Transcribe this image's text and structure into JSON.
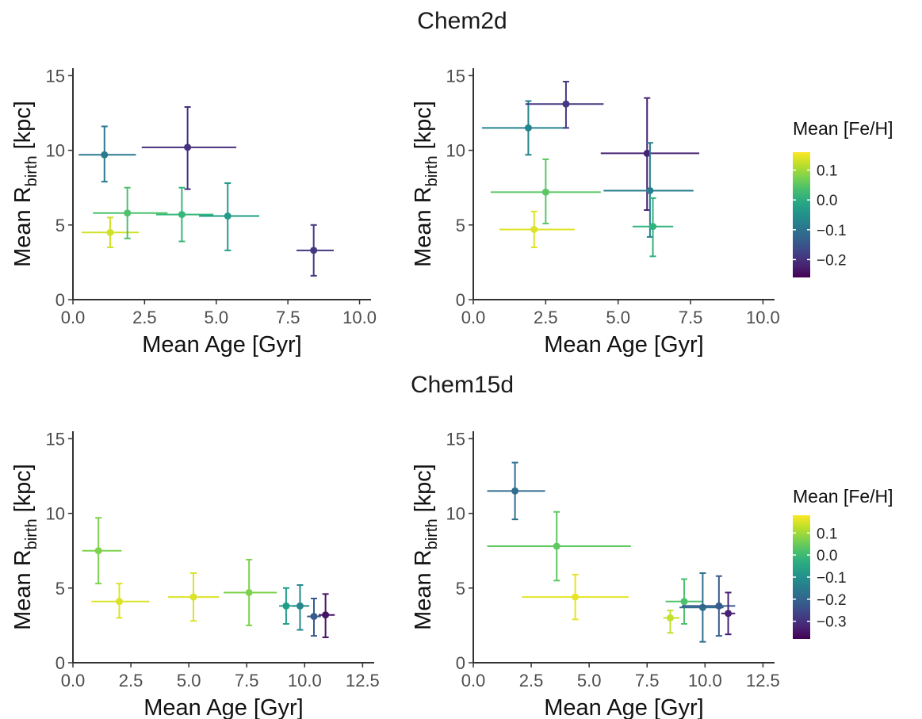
{
  "sections": [
    {
      "title": "Chem2d"
    },
    {
      "title": "Chem15d"
    }
  ],
  "chart_data": [
    {
      "type": "scatter",
      "section": "Chem2d",
      "xlabel": "Mean Age [Gyr]",
      "ylabel_main": "Mean R",
      "ylabel_sub": "birth",
      "ylabel_unit": " [kpc]",
      "xlim": [
        0,
        10.4
      ],
      "ylim": [
        0,
        15.5
      ],
      "xticks": [
        0,
        2.5,
        5,
        7.5,
        10
      ],
      "xtick_labels": [
        "0.0",
        "2.5",
        "5.0",
        "7.5",
        "10.0"
      ],
      "yticks": [
        0,
        5,
        10,
        15
      ],
      "ytick_labels": [
        "0",
        "5",
        "10",
        "15"
      ],
      "points": [
        {
          "x": 1.3,
          "y": 4.5,
          "xerr": [
            0.3,
            2.3
          ],
          "yerr": [
            3.5,
            5.5
          ],
          "feh": 0.13
        },
        {
          "x": 1.1,
          "y": 9.7,
          "xerr": [
            0.2,
            2.2
          ],
          "yerr": [
            7.9,
            11.6
          ],
          "feh": -0.09
        },
        {
          "x": 1.9,
          "y": 5.8,
          "xerr": [
            0.7,
            3.3
          ],
          "yerr": [
            4.1,
            7.5
          ],
          "feh": 0.04
        },
        {
          "x": 3.8,
          "y": 5.7,
          "xerr": [
            2.9,
            4.9
          ],
          "yerr": [
            3.9,
            7.5
          ],
          "feh": 0.02
        },
        {
          "x": 5.4,
          "y": 5.6,
          "xerr": [
            4.4,
            6.5
          ],
          "yerr": [
            3.3,
            7.8
          ],
          "feh": -0.03
        },
        {
          "x": 4.0,
          "y": 10.2,
          "xerr": [
            2.4,
            5.7
          ],
          "yerr": [
            7.4,
            12.9
          ],
          "feh": -0.2
        },
        {
          "x": 8.4,
          "y": 3.3,
          "xerr": [
            7.8,
            9.1
          ],
          "yerr": [
            1.6,
            5.0
          ],
          "feh": -0.19
        }
      ]
    },
    {
      "type": "scatter",
      "section": "Chem2d",
      "xlabel": "Mean Age [Gyr]",
      "ylabel_main": "Mean R",
      "ylabel_sub": "birth",
      "ylabel_unit": " [kpc]",
      "xlim": [
        0,
        10.4
      ],
      "ylim": [
        0,
        15.5
      ],
      "xticks": [
        0,
        2.5,
        5,
        7.5,
        10
      ],
      "xtick_labels": [
        "0.0",
        "2.5",
        "5.0",
        "7.5",
        "10.0"
      ],
      "yticks": [
        0,
        5,
        10,
        15
      ],
      "ytick_labels": [
        "0",
        "5",
        "10",
        "15"
      ],
      "points": [
        {
          "x": 2.1,
          "y": 4.7,
          "xerr": [
            0.9,
            3.5
          ],
          "yerr": [
            3.5,
            5.9
          ],
          "feh": 0.14
        },
        {
          "x": 1.9,
          "y": 11.5,
          "xerr": [
            0.3,
            3.2
          ],
          "yerr": [
            9.7,
            13.3
          ],
          "feh": -0.07
        },
        {
          "x": 3.2,
          "y": 13.1,
          "xerr": [
            1.8,
            4.5
          ],
          "yerr": [
            11.5,
            14.6
          ],
          "feh": -0.19
        },
        {
          "x": 2.5,
          "y": 7.2,
          "xerr": [
            0.6,
            4.4
          ],
          "yerr": [
            5.1,
            9.4
          ],
          "feh": 0.05
        },
        {
          "x": 6.0,
          "y": 9.8,
          "xerr": [
            4.4,
            7.8
          ],
          "yerr": [
            6.0,
            13.5
          ],
          "feh": -0.22
        },
        {
          "x": 6.1,
          "y": 7.3,
          "xerr": [
            4.5,
            7.6
          ],
          "yerr": [
            4.2,
            10.5
          ],
          "feh": -0.08
        },
        {
          "x": 6.2,
          "y": 4.9,
          "xerr": [
            5.5,
            6.9
          ],
          "yerr": [
            2.9,
            6.8
          ],
          "feh": 0.01
        }
      ]
    },
    {
      "type": "scatter",
      "section": "Chem15d",
      "xlabel": "Mean Age [Gyr]",
      "ylabel_main": "Mean R",
      "ylabel_sub": "birth",
      "ylabel_unit": " [kpc]",
      "xlim": [
        0,
        13
      ],
      "ylim": [
        0,
        15.5
      ],
      "xticks": [
        0,
        2.5,
        5,
        7.5,
        10,
        12.5
      ],
      "xtick_labels": [
        "0.0",
        "2.5",
        "5.0",
        "7.5",
        "10.0",
        "12.5"
      ],
      "yticks": [
        0,
        5,
        10,
        15
      ],
      "ytick_labels": [
        "0",
        "5",
        "10",
        "15"
      ],
      "points": [
        {
          "x": 1.1,
          "y": 7.5,
          "xerr": [
            0.4,
            2.1
          ],
          "yerr": [
            5.3,
            9.7
          ],
          "feh": 0.07
        },
        {
          "x": 2.0,
          "y": 4.1,
          "xerr": [
            0.8,
            3.3
          ],
          "yerr": [
            3.0,
            5.3
          ],
          "feh": 0.15
        },
        {
          "x": 5.2,
          "y": 4.4,
          "xerr": [
            4.1,
            6.3
          ],
          "yerr": [
            2.8,
            6.0
          ],
          "feh": 0.15
        },
        {
          "x": 7.6,
          "y": 4.7,
          "xerr": [
            6.5,
            8.8
          ],
          "yerr": [
            2.5,
            6.9
          ],
          "feh": 0.07
        },
        {
          "x": 9.2,
          "y": 3.8,
          "xerr": [
            8.9,
            9.6
          ],
          "yerr": [
            2.6,
            5.0
          ],
          "feh": -0.07
        },
        {
          "x": 9.8,
          "y": 3.8,
          "xerr": [
            9.5,
            10.2
          ],
          "yerr": [
            2.2,
            5.2
          ],
          "feh": -0.12
        },
        {
          "x": 10.4,
          "y": 3.1,
          "xerr": [
            10.1,
            10.7
          ],
          "yerr": [
            1.8,
            4.3
          ],
          "feh": -0.22
        },
        {
          "x": 10.9,
          "y": 3.2,
          "xerr": [
            10.6,
            11.3
          ],
          "yerr": [
            1.7,
            4.6
          ],
          "feh": -0.35
        }
      ]
    },
    {
      "type": "scatter",
      "section": "Chem15d",
      "xlabel": "Mean Age [Gyr]",
      "ylabel_main": "Mean R",
      "ylabel_sub": "birth",
      "ylabel_unit": " [kpc]",
      "xlim": [
        0,
        13
      ],
      "ylim": [
        0,
        15.5
      ],
      "xticks": [
        0,
        2.5,
        5,
        7.5,
        10,
        12.5
      ],
      "xtick_labels": [
        "0.0",
        "2.5",
        "5.0",
        "7.5",
        "10.0",
        "12.5"
      ],
      "yticks": [
        0,
        5,
        10,
        15
      ],
      "ytick_labels": [
        "0",
        "5",
        "10",
        "15"
      ],
      "points": [
        {
          "x": 1.8,
          "y": 11.5,
          "xerr": [
            0.6,
            3.1
          ],
          "yerr": [
            9.6,
            13.4
          ],
          "feh": -0.18
        },
        {
          "x": 3.6,
          "y": 7.8,
          "xerr": [
            0.6,
            6.8
          ],
          "yerr": [
            5.5,
            10.1
          ],
          "feh": 0.04
        },
        {
          "x": 4.4,
          "y": 4.4,
          "xerr": [
            2.1,
            6.7
          ],
          "yerr": [
            2.9,
            5.9
          ],
          "feh": 0.16
        },
        {
          "x": 8.5,
          "y": 3.0,
          "xerr": [
            8.2,
            8.9
          ],
          "yerr": [
            2.0,
            3.5
          ],
          "feh": 0.13
        },
        {
          "x": 9.1,
          "y": 4.1,
          "xerr": [
            8.3,
            9.9
          ],
          "yerr": [
            2.6,
            5.6
          ],
          "feh": 0.02
        },
        {
          "x": 9.9,
          "y": 3.7,
          "xerr": [
            8.9,
            10.8
          ],
          "yerr": [
            1.4,
            6.0
          ],
          "feh": -0.18
        },
        {
          "x": 10.6,
          "y": 3.8,
          "xerr": [
            9.0,
            11.3
          ],
          "yerr": [
            1.8,
            5.8
          ],
          "feh": -0.22
        },
        {
          "x": 11.0,
          "y": 3.3,
          "xerr": [
            10.7,
            11.3
          ],
          "yerr": [
            1.9,
            4.7
          ],
          "feh": -0.33
        }
      ]
    }
  ],
  "legends": [
    {
      "title": "Mean [Fe/H]",
      "range": [
        -0.26,
        0.16
      ],
      "ticks": [
        0.1,
        0.0,
        -0.1,
        -0.2
      ],
      "tick_labels": [
        "0.1",
        "0.0",
        "−0.1",
        "−0.2"
      ]
    },
    {
      "title": "Mean [Fe/H]",
      "range": [
        -0.38,
        0.18
      ],
      "ticks": [
        0.1,
        0.0,
        -0.1,
        -0.2,
        -0.3
      ],
      "tick_labels": [
        "0.1",
        "0.0",
        "−0.1",
        "−0.2",
        "−0.3"
      ]
    }
  ],
  "colors": {
    "viridis": [
      "#440154",
      "#482878",
      "#3e4989",
      "#31688e",
      "#26828e",
      "#1f9e89",
      "#35b779",
      "#6ece58",
      "#b5de2b",
      "#fde725"
    ],
    "axis": "#333333",
    "tick_text": "#4d4d4d"
  }
}
